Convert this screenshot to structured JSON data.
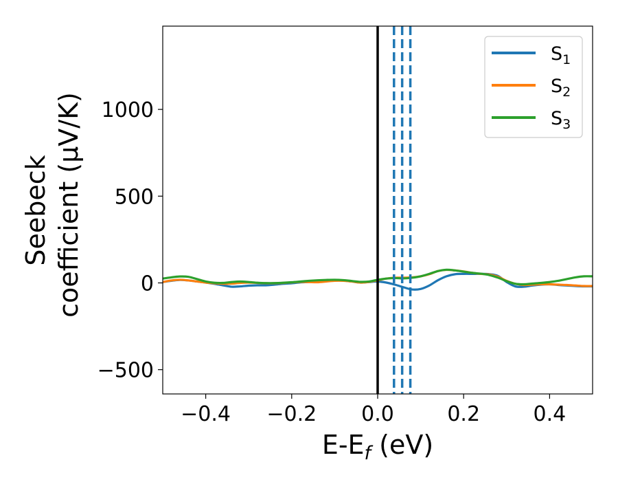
{
  "chart_data": {
    "type": "line",
    "title": "",
    "xlabel": "E-E",
    "xlabel_sub": "f",
    "xlabel_unit": " (eV)",
    "ylabel_line1": "Seebeck",
    "ylabel_line2": "coefficient  (μV/K)",
    "xlim": [
      -0.5,
      0.5
    ],
    "ylim": [
      -640,
      1480
    ],
    "xticks": [
      -0.4,
      -0.2,
      0.0,
      0.2,
      0.4
    ],
    "xtick_labels": [
      "−0.4",
      "−0.2",
      "0.0",
      "0.2",
      "0.4"
    ],
    "yticks": [
      -500,
      0,
      500,
      1000
    ],
    "ytick_labels": [
      "−500",
      "0",
      "500",
      "1000"
    ],
    "grid": false,
    "legend_position": "top-right",
    "fermi_level_line": {
      "x": 0.0,
      "color": "#000000"
    },
    "dashed_lines": {
      "x": [
        0.038,
        0.057,
        0.076
      ],
      "color": "#1f77b4"
    },
    "series": [
      {
        "name": "S",
        "sub": "1",
        "color": "#1f77b4",
        "x": [
          -0.5,
          -0.48,
          -0.46,
          -0.44,
          -0.42,
          -0.4,
          -0.38,
          -0.36,
          -0.34,
          -0.32,
          -0.3,
          -0.28,
          -0.26,
          -0.24,
          -0.22,
          -0.2,
          -0.18,
          -0.16,
          -0.14,
          -0.12,
          -0.1,
          -0.08,
          -0.06,
          -0.04,
          -0.02,
          0.0,
          0.02,
          0.04,
          0.06,
          0.08,
          0.1,
          0.12,
          0.14,
          0.16,
          0.18,
          0.2,
          0.22,
          0.24,
          0.26,
          0.28,
          0.3,
          0.32,
          0.34,
          0.36,
          0.38,
          0.4,
          0.42,
          0.44,
          0.46,
          0.48,
          0.5
        ],
        "values": [
          5,
          12,
          17,
          14,
          8,
          2,
          -5,
          -14,
          -22,
          -20,
          -16,
          -14,
          -14,
          -10,
          -5,
          -2,
          3,
          5,
          8,
          12,
          15,
          13,
          8,
          2,
          5,
          8,
          2,
          -10,
          -25,
          -38,
          -35,
          -15,
          15,
          38,
          50,
          52,
          52,
          52,
          50,
          40,
          5,
          -20,
          -22,
          -15,
          -10,
          -8,
          -12,
          -15,
          -18,
          -20,
          -20
        ]
      },
      {
        "name": "S",
        "sub": "2",
        "color": "#ff7f0e",
        "x": [
          -0.5,
          -0.48,
          -0.46,
          -0.44,
          -0.42,
          -0.4,
          -0.38,
          -0.36,
          -0.34,
          -0.32,
          -0.3,
          -0.28,
          -0.26,
          -0.24,
          -0.22,
          -0.2,
          -0.18,
          -0.16,
          -0.14,
          -0.12,
          -0.1,
          -0.08,
          -0.06,
          -0.04,
          -0.02,
          0.0,
          0.02,
          0.04,
          0.06,
          0.08,
          0.1,
          0.12,
          0.14,
          0.16,
          0.18,
          0.2,
          0.22,
          0.24,
          0.26,
          0.28,
          0.3,
          0.32,
          0.34,
          0.36,
          0.38,
          0.4,
          0.42,
          0.44,
          0.46,
          0.48,
          0.5
        ],
        "values": [
          5,
          14,
          18,
          14,
          8,
          2,
          -2,
          -5,
          -4,
          0,
          2,
          0,
          -2,
          -2,
          0,
          3,
          6,
          5,
          4,
          8,
          12,
          12,
          8,
          2,
          6,
          15,
          25,
          30,
          30,
          32,
          38,
          50,
          68,
          75,
          72,
          66,
          58,
          52,
          48,
          35,
          12,
          -5,
          -12,
          -10,
          -8,
          -8,
          -10,
          -12,
          -15,
          -18,
          -18
        ]
      },
      {
        "name": "S",
        "sub": "3",
        "color": "#2ca02c",
        "x": [
          -0.5,
          -0.48,
          -0.46,
          -0.44,
          -0.42,
          -0.4,
          -0.38,
          -0.36,
          -0.34,
          -0.32,
          -0.3,
          -0.28,
          -0.26,
          -0.24,
          -0.22,
          -0.2,
          -0.18,
          -0.16,
          -0.14,
          -0.12,
          -0.1,
          -0.08,
          -0.06,
          -0.04,
          -0.02,
          0.0,
          0.02,
          0.04,
          0.06,
          0.08,
          0.1,
          0.12,
          0.14,
          0.16,
          0.18,
          0.2,
          0.22,
          0.24,
          0.26,
          0.28,
          0.3,
          0.32,
          0.34,
          0.36,
          0.38,
          0.4,
          0.42,
          0.44,
          0.46,
          0.48,
          0.5
        ],
        "values": [
          25,
          32,
          37,
          35,
          22,
          8,
          1,
          0,
          5,
          8,
          5,
          1,
          -1,
          -1,
          1,
          4,
          8,
          12,
          15,
          17,
          18,
          16,
          11,
          6,
          8,
          18,
          25,
          28,
          26,
          30,
          38,
          52,
          68,
          76,
          72,
          65,
          58,
          53,
          45,
          30,
          10,
          -5,
          -8,
          -4,
          0,
          5,
          12,
          22,
          32,
          38,
          38
        ]
      }
    ]
  }
}
